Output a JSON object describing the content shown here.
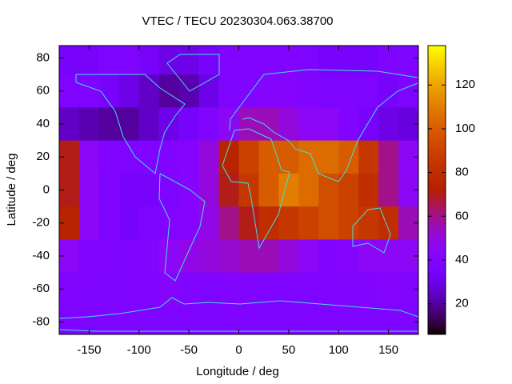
{
  "chart_data": {
    "type": "heatmap",
    "title": "VTEC / TECU 20230304.063.38700",
    "x_label": "Longitude / deg",
    "y_label": "Latitude / deg",
    "x": [
      -170,
      -150,
      -130,
      -110,
      -90,
      -70,
      -50,
      -30,
      -10,
      10,
      30,
      50,
      70,
      90,
      110,
      130,
      150,
      170
    ],
    "y": [
      80,
      60,
      40,
      20,
      0,
      -20,
      -40,
      -60,
      -80
    ],
    "values": [
      [
        35,
        35,
        38,
        38,
        35,
        30,
        30,
        35,
        40,
        40,
        40,
        40,
        38,
        35,
        35,
        35,
        38,
        38
      ],
      [
        38,
        38,
        35,
        30,
        25,
        20,
        22,
        30,
        38,
        40,
        42,
        42,
        40,
        38,
        38,
        38,
        35,
        38
      ],
      [
        25,
        22,
        20,
        20,
        25,
        30,
        35,
        40,
        45,
        55,
        55,
        50,
        45,
        45,
        40,
        35,
        30,
        28
      ],
      [
        70,
        45,
        40,
        38,
        38,
        40,
        42,
        50,
        75,
        90,
        100,
        100,
        105,
        105,
        100,
        85,
        60,
        45
      ],
      [
        70,
        45,
        38,
        35,
        35,
        38,
        42,
        50,
        70,
        85,
        100,
        110,
        105,
        95,
        90,
        80,
        60,
        45
      ],
      [
        75,
        45,
        38,
        35,
        38,
        40,
        42,
        48,
        60,
        70,
        80,
        85,
        90,
        95,
        90,
        85,
        80,
        55
      ],
      [
        45,
        40,
        38,
        38,
        40,
        45,
        48,
        50,
        52,
        55,
        55,
        50,
        45,
        40,
        42,
        45,
        45,
        45
      ],
      [
        40,
        38,
        38,
        38,
        40,
        42,
        40,
        38,
        40,
        40,
        38,
        38,
        38,
        40,
        40,
        40,
        42,
        40
      ],
      [
        38,
        38,
        38,
        38,
        38,
        38,
        38,
        38,
        38,
        38,
        38,
        38,
        38,
        38,
        38,
        38,
        38,
        38
      ]
    ],
    "xlim": [
      -180,
      180
    ],
    "ylim": [
      -87.5,
      87.5
    ],
    "xticks": [
      -150,
      -100,
      -50,
      0,
      50,
      100,
      150
    ],
    "yticks": [
      -80,
      -60,
      -40,
      -20,
      0,
      20,
      40,
      60,
      80
    ],
    "cblim": [
      6,
      138
    ],
    "cbticks": [
      20,
      40,
      60,
      80,
      100,
      120
    ],
    "colormap": "gnuplot",
    "coastline_color": "#40e0e0"
  }
}
